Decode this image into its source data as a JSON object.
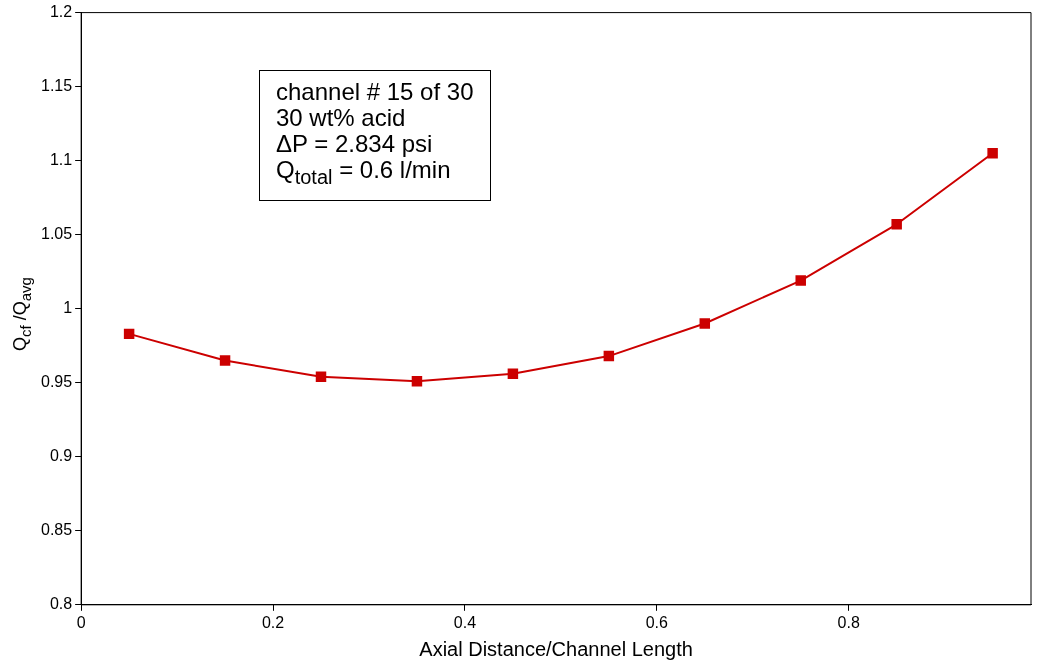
{
  "chart_data": {
    "type": "line",
    "xlabel": "Axial Distance/Channel Length",
    "ylabel": "Q$_{cf}$ /Q$_{avg}$",
    "x": [
      0.05,
      0.15,
      0.25,
      0.35,
      0.45,
      0.55,
      0.65,
      0.75,
      0.85,
      0.95
    ],
    "series": [
      {
        "color": "#cc0000",
        "values": [
          0.983,
          0.965,
          0.954,
          0.951,
          0.956,
          0.968,
          0.99,
          1.019,
          1.057,
          1.105
        ]
      }
    ],
    "xlim": [
      0,
      0.99
    ],
    "xticks": [
      0,
      0.2,
      0.4,
      0.6,
      0.8
    ],
    "ylim": [
      0.8,
      1.2
    ],
    "yticks": [
      0.8,
      0.85,
      0.9,
      0.95,
      1,
      1.05,
      1.1,
      1.15,
      1.2
    ],
    "grid": false,
    "legend": false,
    "marker": "square",
    "line_style": "solid",
    "annotations": [
      "channel # 15 of 30",
      "30 wt% acid",
      "ΔP = 2.834 psi",
      "Q$_{total}$ = 0.6 l/min"
    ]
  }
}
